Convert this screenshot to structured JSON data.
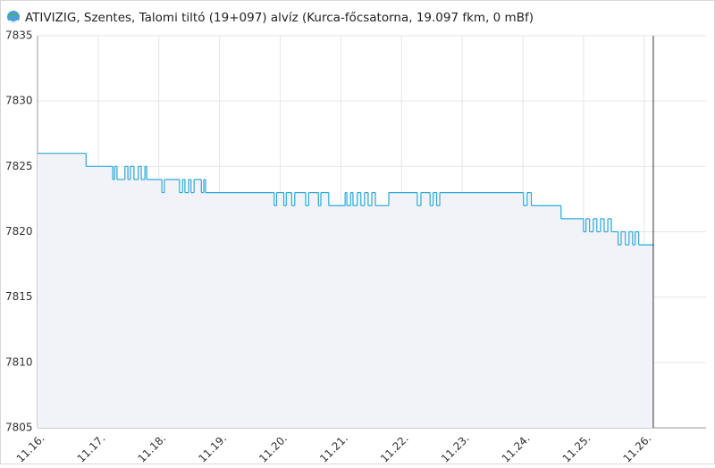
{
  "chart_data": {
    "type": "line",
    "step": "post",
    "title": "ATIVIZIG, Szentes, Talomi tiltó (19+097) alvíz (Kurca-főcsatorna, 19.097 fkm, 0 mBf)",
    "x": [
      16.0,
      16.8,
      17.24,
      17.27,
      17.31,
      17.44,
      17.49,
      17.53,
      17.59,
      17.66,
      17.71,
      17.77,
      17.8,
      18.05,
      18.09,
      18.34,
      18.39,
      18.43,
      18.49,
      18.53,
      18.58,
      18.7,
      18.74,
      18.77,
      19.9,
      19.94,
      20.06,
      20.1,
      20.19,
      20.24,
      20.42,
      20.47,
      20.63,
      20.67,
      20.8,
      21.07,
      21.1,
      21.16,
      21.2,
      21.27,
      21.33,
      21.39,
      21.45,
      21.51,
      21.57,
      21.79,
      22.26,
      22.32,
      22.47,
      22.52,
      22.58,
      22.63,
      24.01,
      24.07,
      24.14,
      24.63,
      25.0,
      25.04,
      25.1,
      25.16,
      25.22,
      25.28,
      25.34,
      25.4,
      25.46,
      25.57,
      25.62,
      25.69,
      25.75,
      25.81,
      25.85,
      25.91,
      26.15
    ],
    "values": [
      7826,
      7825,
      7824,
      7825,
      7824,
      7825,
      7824,
      7825,
      7824,
      7825,
      7824,
      7825,
      7824,
      7823,
      7824,
      7823,
      7824,
      7823,
      7824,
      7823,
      7824,
      7823,
      7824,
      7823,
      7822,
      7823,
      7822,
      7823,
      7822,
      7823,
      7822,
      7823,
      7822,
      7823,
      7822,
      7823,
      7822,
      7823,
      7822,
      7823,
      7822,
      7823,
      7822,
      7823,
      7822,
      7823,
      7822,
      7823,
      7822,
      7823,
      7822,
      7823,
      7822,
      7823,
      7822,
      7821,
      7820,
      7821,
      7820,
      7821,
      7820,
      7821,
      7820,
      7821,
      7820,
      7819,
      7820,
      7819,
      7820,
      7819,
      7820,
      7819,
      7819
    ],
    "color": "#29a8d8",
    "area_color": "#f2f3f8",
    "xlim": [
      16,
      27.02
    ],
    "xticks": [
      {
        "value": 16,
        "label": "11.16."
      },
      {
        "value": 17,
        "label": "11.17."
      },
      {
        "value": 18,
        "label": "11.18."
      },
      {
        "value": 19,
        "label": "11.19."
      },
      {
        "value": 20,
        "label": "11.20."
      },
      {
        "value": 21,
        "label": "11.21."
      },
      {
        "value": 22,
        "label": "11.22."
      },
      {
        "value": 23,
        "label": "11.23."
      },
      {
        "value": 24,
        "label": "11.24."
      },
      {
        "value": 25,
        "label": "11.25."
      },
      {
        "value": 26,
        "label": "11.26."
      }
    ],
    "ylim": [
      7805,
      7835
    ],
    "yticks": [
      7805,
      7810,
      7815,
      7820,
      7825,
      7830,
      7835
    ],
    "grid": true
  }
}
